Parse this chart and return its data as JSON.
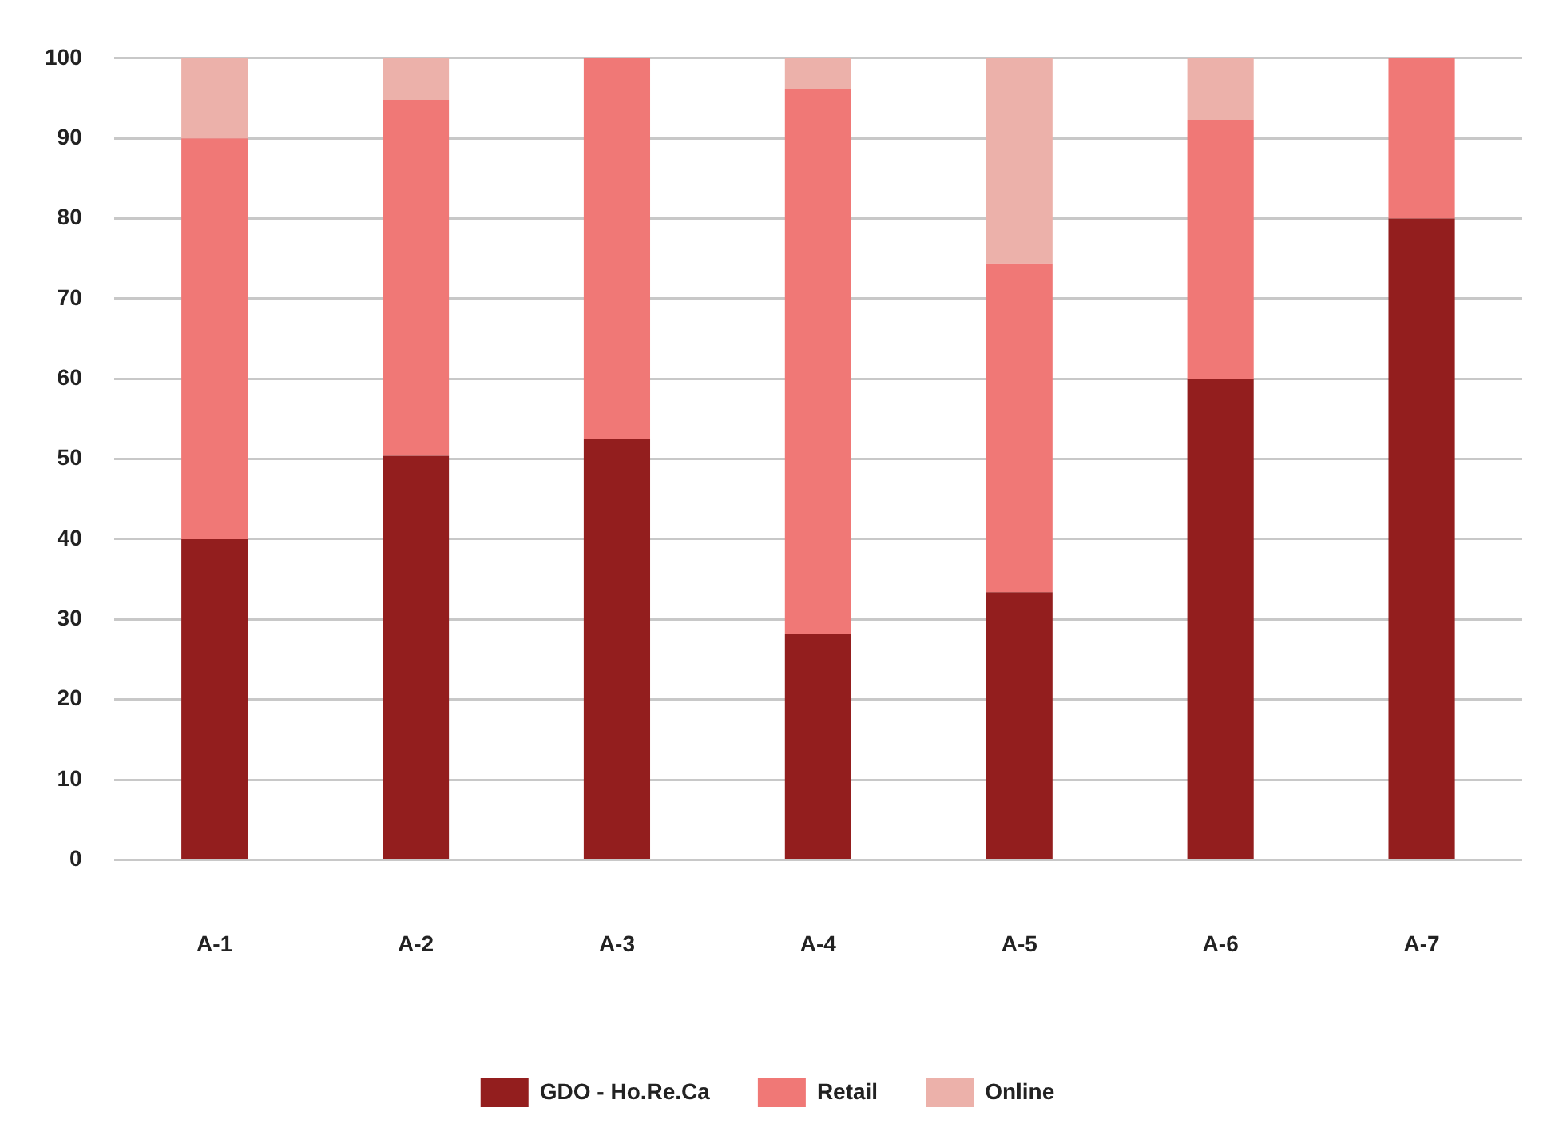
{
  "chart_data": {
    "type": "bar",
    "stacked": true,
    "categories": [
      "A-1",
      "A-2",
      "A-3",
      "A-4",
      "A-5",
      "A-6",
      "A-7"
    ],
    "series": [
      {
        "name": "GDO - Ho.Re.Ca",
        "color": "#931e1e",
        "values": [
          40,
          50.4,
          52.5,
          28.2,
          33.4,
          60,
          80
        ]
      },
      {
        "name": "Retail",
        "color": "#f07876",
        "values": [
          50,
          44.4,
          47.5,
          67.9,
          41,
          32.3,
          20
        ]
      },
      {
        "name": "Online",
        "color": "#ecb1aa",
        "values": [
          10,
          5.2,
          0,
          3.9,
          25.6,
          7.7,
          0
        ]
      }
    ],
    "ylim": [
      0,
      100
    ],
    "yticks": [
      0,
      10,
      20,
      30,
      40,
      50,
      60,
      70,
      80,
      90,
      100
    ],
    "grid": "y",
    "legend": "bottom"
  }
}
